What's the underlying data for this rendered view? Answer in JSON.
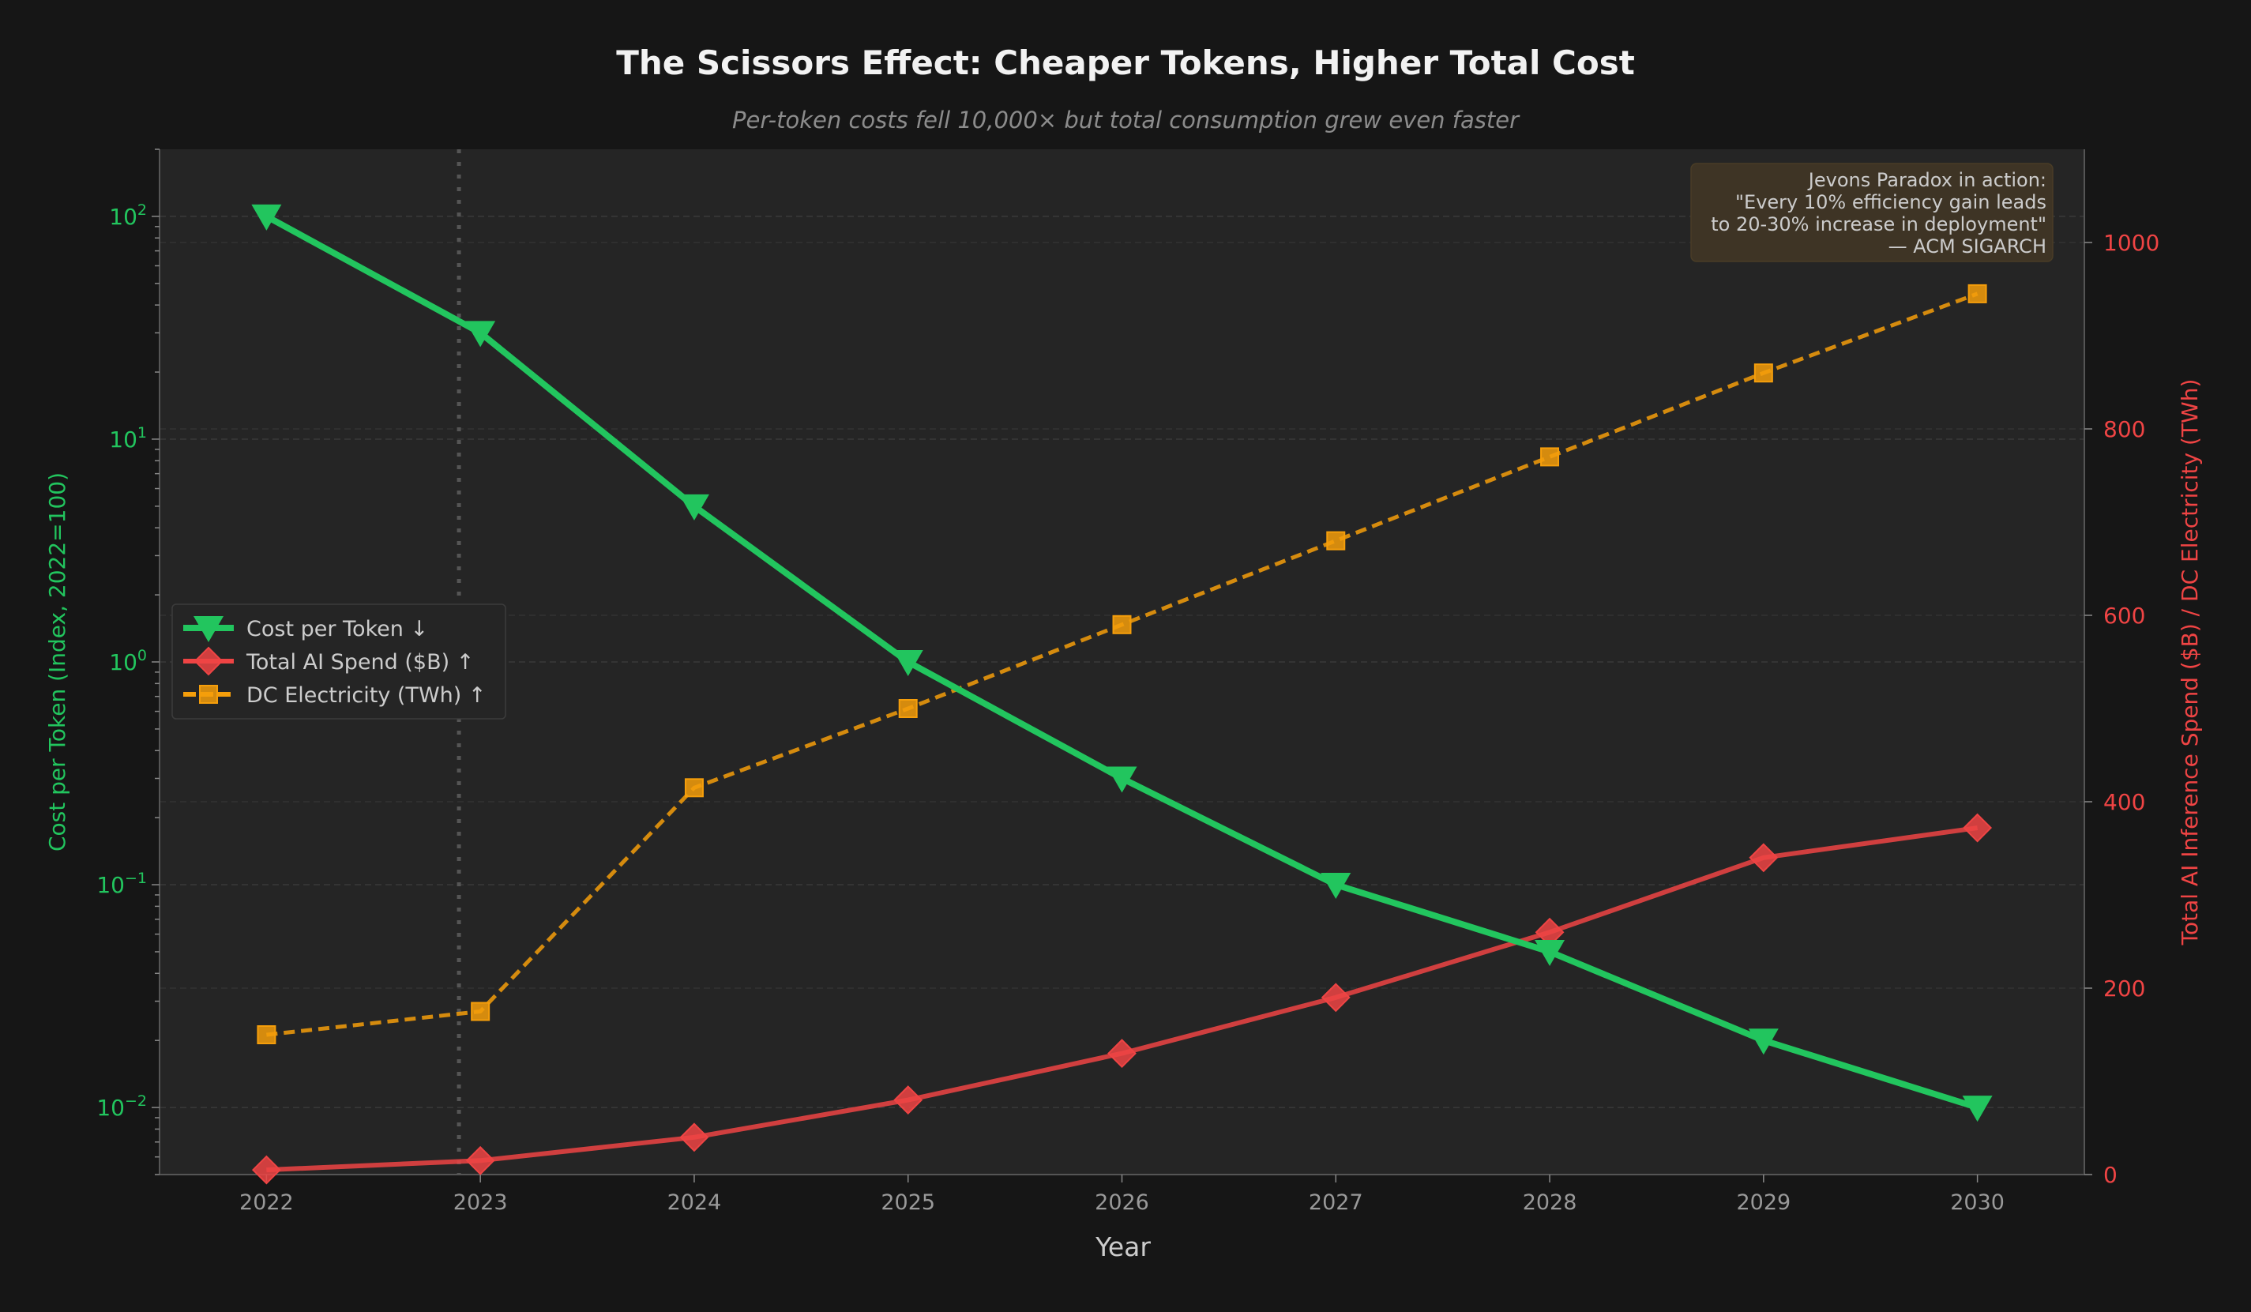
{
  "chart_data": {
    "type": "line",
    "title": "The Scissors Effect: Cheaper Tokens, Higher Total Cost",
    "subtitle": "Per-token costs fell 10,000× but total consumption grew even faster",
    "xlabel": "Year",
    "ylabel_left": "Cost per Token (Index, 2022=100)",
    "ylabel_right": "Total AI Inference Spend ($B) / DC Electricity (TWh)",
    "x": [
      2022,
      2023,
      2024,
      2025,
      2026,
      2027,
      2028,
      2029,
      2030
    ],
    "xlim": [
      2021.5,
      2030.5
    ],
    "ylim_left": [
      0.005,
      200
    ],
    "yscale_left": "log",
    "ylim_right": [
      0,
      1100
    ],
    "left_ticks": [
      0.01,
      0.1,
      1,
      10,
      100
    ],
    "left_tick_labels": [
      [
        "10",
        "−2"
      ],
      [
        "10",
        "−1"
      ],
      [
        "10",
        "0"
      ],
      [
        "10",
        "1"
      ],
      [
        "10",
        "2"
      ]
    ],
    "right_ticks": [
      0,
      200,
      400,
      600,
      800,
      1000
    ],
    "grid": true,
    "legend_position": "center-left",
    "vline_x": 2022.9,
    "series": [
      {
        "name": "Cost per Token ↓",
        "axis": "left",
        "color": "#22c55e",
        "marker": "triangle-down",
        "style": "solid",
        "values": [
          100,
          30,
          5,
          1,
          0.3,
          0.1,
          0.05,
          0.02,
          0.01
        ]
      },
      {
        "name": "Total AI Spend ($B) ↑",
        "axis": "right",
        "color": "#ef4444",
        "marker": "diamond",
        "style": "solid",
        "values": [
          5,
          15,
          40,
          80,
          130,
          190,
          260,
          340,
          372
        ]
      },
      {
        "name": "DC Electricity (TWh) ↑",
        "axis": "right",
        "color": "#f59e0b",
        "marker": "square",
        "style": "dashed",
        "values": [
          150,
          175,
          415,
          500,
          590,
          680,
          770,
          860,
          945
        ]
      }
    ],
    "annotation": [
      "Jevons Paradox in action:",
      "\"Every 10% efficiency gain leads",
      "to 20-30% increase in deployment\"",
      "— ACM SIGARCH"
    ]
  },
  "colors": {
    "background": "#161616",
    "plot_bg": "#252525",
    "left_axis": "#22c55e",
    "right_axis": "#ef4444",
    "text": "#cccccc"
  }
}
